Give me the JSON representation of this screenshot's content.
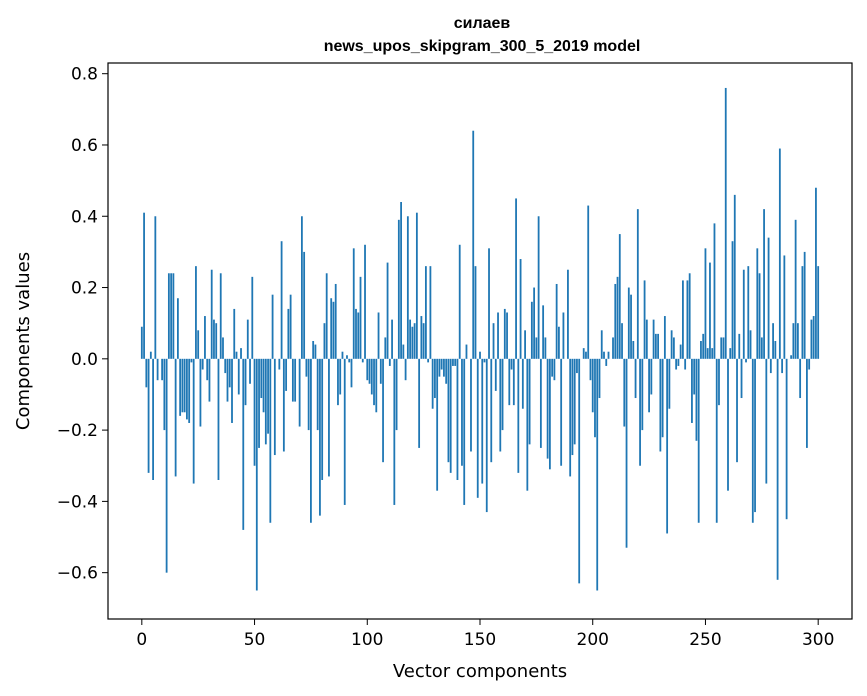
{
  "chart_data": {
    "type": "bar",
    "title": "силаев",
    "subtitle": "news_upos_skipgram_300_5_2019 model",
    "xlabel": "Vector components",
    "ylabel": "Components values",
    "xlim": [
      -15,
      315
    ],
    "ylim": [
      -0.73,
      0.83
    ],
    "xticks": [
      0,
      50,
      100,
      150,
      200,
      250,
      300
    ],
    "yticks": [
      -0.6,
      -0.4,
      -0.2,
      0.0,
      0.2,
      0.4,
      0.6,
      0.8
    ],
    "ytick_labels": [
      "−0.6",
      "−0.4",
      "−0.2",
      "0.0",
      "0.2",
      "0.4",
      "0.6",
      "0.8"
    ],
    "bar_color": "#1f77b4",
    "grid": false,
    "legend": "none",
    "values": [
      0.09,
      0.41,
      -0.08,
      -0.32,
      0.02,
      -0.34,
      0.4,
      -0.06,
      0.0,
      -0.06,
      -0.2,
      -0.6,
      0.24,
      0.24,
      0.24,
      -0.33,
      0.17,
      -0.16,
      -0.15,
      -0.15,
      -0.17,
      -0.18,
      -0.01,
      -0.35,
      0.26,
      0.08,
      -0.19,
      -0.03,
      0.12,
      -0.06,
      -0.12,
      0.25,
      0.11,
      0.1,
      -0.34,
      0.24,
      0.06,
      -0.04,
      -0.12,
      -0.08,
      -0.18,
      0.14,
      0.02,
      -0.1,
      0.03,
      -0.48,
      -0.13,
      0.11,
      -0.07,
      0.23,
      -0.3,
      -0.65,
      -0.25,
      -0.11,
      -0.15,
      -0.24,
      -0.21,
      -0.46,
      0.18,
      -0.27,
      0.0,
      -0.03,
      0.33,
      -0.26,
      -0.09,
      0.14,
      0.18,
      -0.12,
      -0.12,
      0.0,
      -0.19,
      0.4,
      0.3,
      -0.05,
      -0.2,
      -0.46,
      0.05,
      0.04,
      -0.2,
      -0.44,
      -0.34,
      0.1,
      0.24,
      -0.33,
      0.17,
      0.16,
      0.21,
      -0.13,
      -0.1,
      0.02,
      -0.41,
      0.01,
      -0.01,
      -0.08,
      0.31,
      0.14,
      0.13,
      0.23,
      -0.01,
      0.32,
      -0.06,
      -0.07,
      -0.1,
      -0.13,
      -0.15,
      0.13,
      -0.07,
      -0.29,
      0.06,
      0.27,
      -0.02,
      0.11,
      -0.41,
      -0.2,
      0.39,
      0.44,
      0.04,
      -0.06,
      0.4,
      0.11,
      0.09,
      0.1,
      0.41,
      -0.25,
      0.12,
      0.1,
      0.26,
      -0.01,
      0.26,
      -0.14,
      -0.11,
      -0.37,
      -0.05,
      -0.03,
      -0.05,
      -0.07,
      -0.29,
      -0.32,
      -0.02,
      -0.02,
      -0.34,
      0.32,
      -0.3,
      -0.41,
      0.04,
      0.0,
      -0.26,
      0.64,
      0.26,
      -0.39,
      0.02,
      -0.35,
      -0.01,
      -0.43,
      0.31,
      -0.29,
      0.1,
      -0.09,
      0.13,
      -0.26,
      -0.2,
      0.14,
      0.13,
      -0.13,
      -0.03,
      -0.13,
      0.45,
      -0.32,
      0.28,
      -0.14,
      0.08,
      -0.37,
      -0.24,
      0.16,
      0.2,
      0.06,
      0.4,
      -0.25,
      0.15,
      0.06,
      -0.28,
      -0.31,
      -0.05,
      -0.06,
      0.21,
      0.09,
      -0.3,
      0.13,
      0.0,
      0.25,
      -0.33,
      -0.27,
      -0.24,
      -0.04,
      -0.63,
      0.0,
      0.03,
      0.02,
      0.43,
      -0.06,
      -0.15,
      -0.22,
      -0.65,
      -0.11,
      0.08,
      0.02,
      -0.02,
      0.02,
      0.0,
      0.06,
      0.21,
      0.23,
      0.35,
      0.1,
      -0.19,
      -0.53,
      0.2,
      0.18,
      0.05,
      -0.11,
      0.42,
      -0.3,
      -0.2,
      0.22,
      0.11,
      -0.15,
      -0.1,
      0.11,
      0.07,
      0.07,
      -0.26,
      -0.22,
      0.12,
      -0.49,
      -0.14,
      0.08,
      0.06,
      -0.03,
      -0.02,
      0.04,
      0.22,
      -0.03,
      0.22,
      0.24,
      -0.18,
      -0.1,
      -0.23,
      -0.46,
      0.05,
      0.07,
      0.31,
      0.03,
      0.27,
      0.03,
      0.38,
      -0.46,
      -0.13,
      0.06,
      0.06,
      0.76,
      -0.37,
      0.03,
      0.33,
      0.46,
      -0.29,
      0.07,
      -0.11,
      0.25,
      -0.01,
      0.26,
      0.08,
      -0.46,
      -0.43,
      0.31,
      0.24,
      0.06,
      0.42,
      -0.35,
      0.34,
      -0.04,
      0.1,
      0.05,
      -0.62,
      0.59,
      -0.04,
      0.29,
      -0.45,
      0.0,
      0.01,
      0.1,
      0.39,
      0.1,
      -0.11,
      0.26,
      0.3,
      -0.25,
      -0.03,
      0.11,
      0.12,
      0.48,
      0.26
    ]
  }
}
